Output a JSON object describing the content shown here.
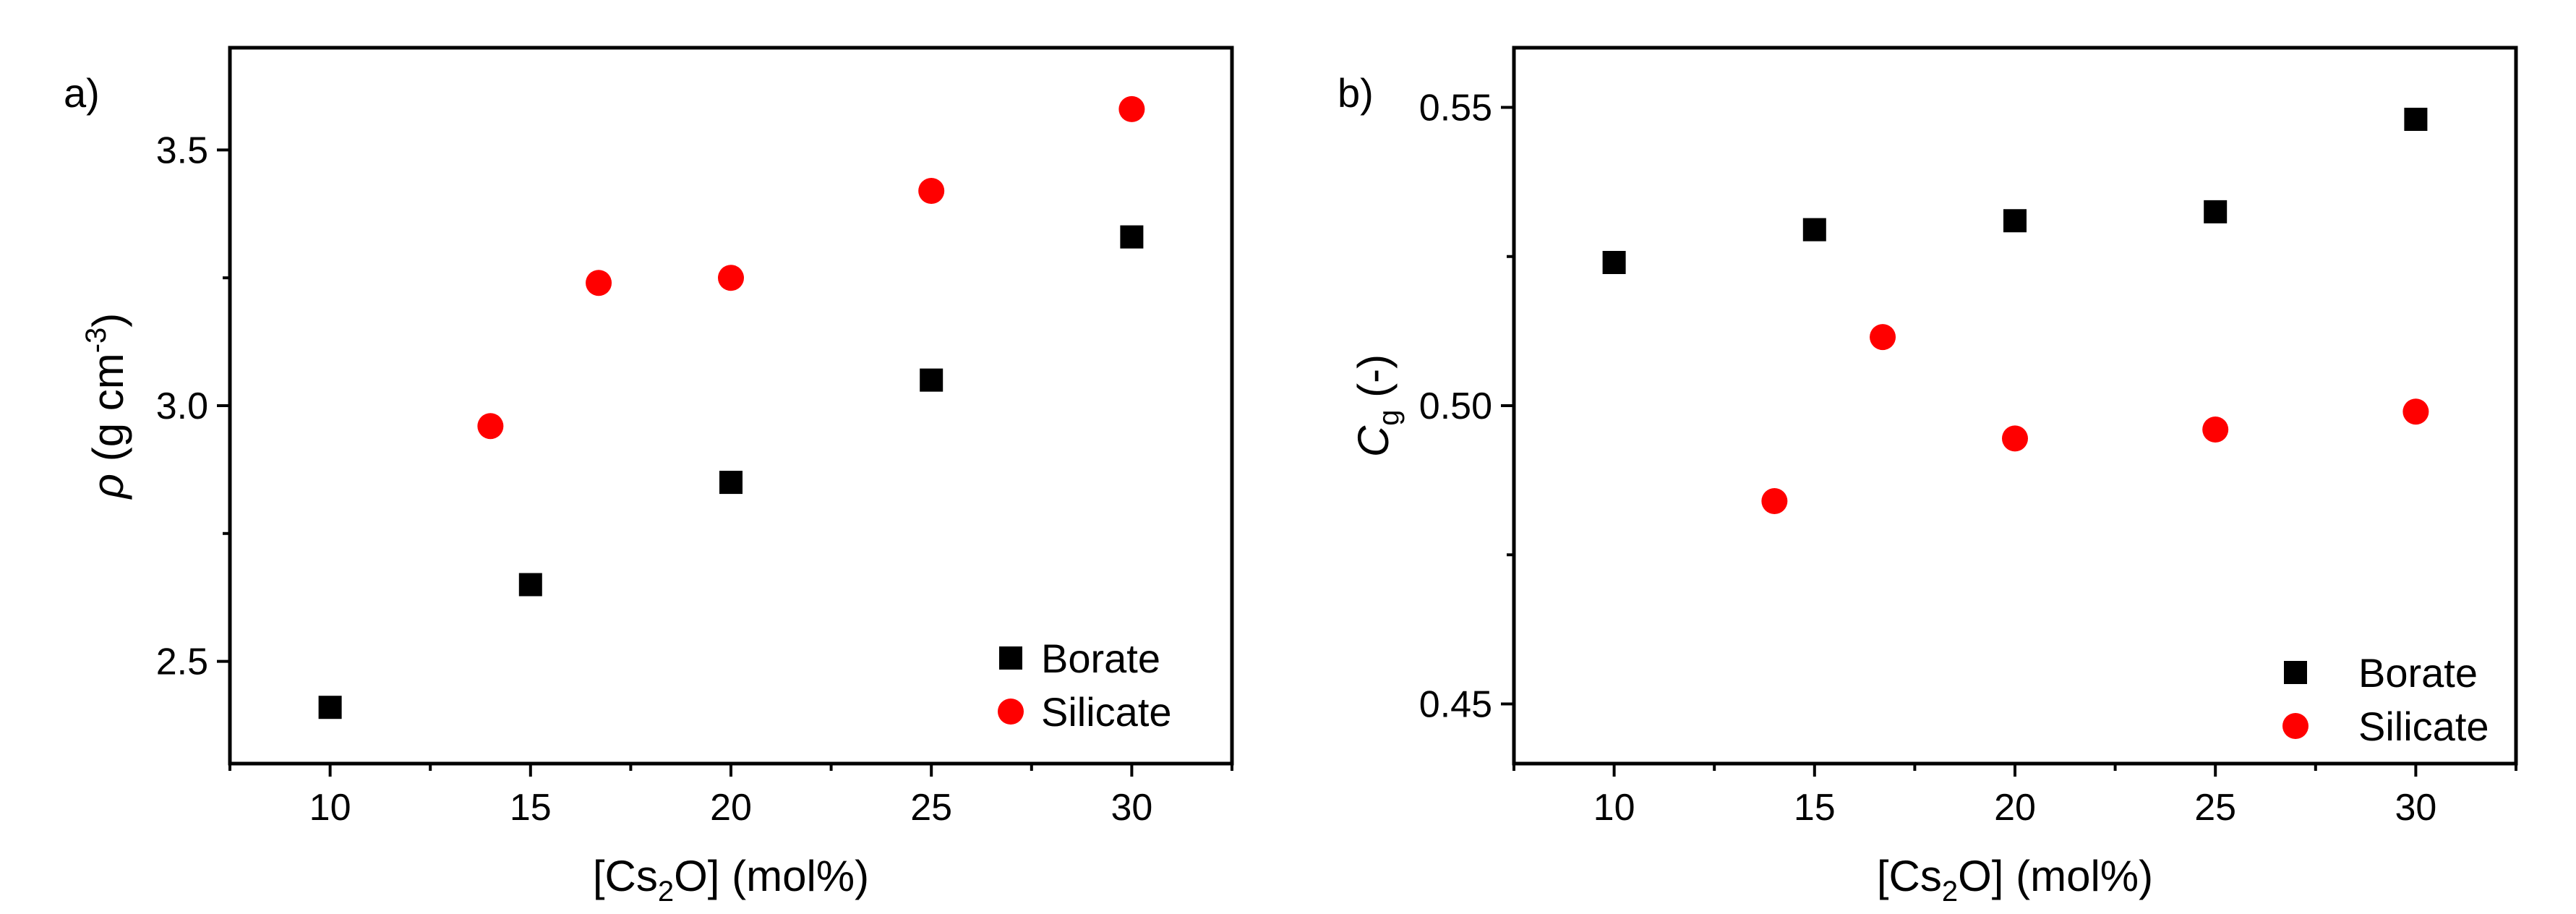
{
  "chart_data": [
    {
      "type": "scatter",
      "panel_label": "a)",
      "xlabel_parts": [
        "[Cs",
        "2",
        "O] (mol%)"
      ],
      "ylabel_parts": [
        "ρ",
        " (g cm",
        "-3",
        ")"
      ],
      "xlim": [
        7.5,
        32.5
      ],
      "ylim": [
        2.3,
        3.7
      ],
      "xticks": [
        10,
        15,
        20,
        25,
        30
      ],
      "xtick_labels": [
        "10",
        "15",
        "20",
        "25",
        "30"
      ],
      "yticks": [
        2.5,
        3.0,
        3.5
      ],
      "ytick_labels": [
        "2.5",
        "3.0",
        "3.5"
      ],
      "legend_position": "bottom-right",
      "grid": false,
      "series": [
        {
          "name": "Borate",
          "marker": "square",
          "color": "#000000",
          "x": [
            10,
            15,
            20,
            25,
            30
          ],
          "y": [
            2.41,
            2.65,
            2.85,
            3.05,
            3.33
          ]
        },
        {
          "name": "Silicate",
          "marker": "circle",
          "color": "#ff0000",
          "x": [
            14,
            16.7,
            20,
            25,
            30
          ],
          "y": [
            2.96,
            3.24,
            3.25,
            3.42,
            3.58
          ]
        }
      ]
    },
    {
      "type": "scatter",
      "panel_label": "b)",
      "xlabel_parts": [
        "[Cs",
        "2",
        "O] (mol%)"
      ],
      "ylabel_parts": [
        "C",
        "g",
        " (-)"
      ],
      "xlim": [
        7.5,
        32.5
      ],
      "ylim": [
        0.44,
        0.56
      ],
      "xticks": [
        10,
        15,
        20,
        25,
        30
      ],
      "xtick_labels": [
        "10",
        "15",
        "20",
        "25",
        "30"
      ],
      "yticks": [
        0.45,
        0.5,
        0.55
      ],
      "ytick_labels": [
        "0.45",
        "0.50",
        "0.55"
      ],
      "legend_position": "bottom-right",
      "grid": false,
      "series": [
        {
          "name": "Borate",
          "marker": "square",
          "color": "#000000",
          "x": [
            10,
            15,
            20,
            25,
            30
          ],
          "y": [
            0.524,
            0.5295,
            0.531,
            0.5325,
            0.548
          ]
        },
        {
          "name": "Silicate",
          "marker": "circle",
          "color": "#ff0000",
          "x": [
            14,
            16.7,
            20,
            25,
            30
          ],
          "y": [
            0.484,
            0.5115,
            0.4945,
            0.496,
            0.499
          ]
        }
      ]
    }
  ]
}
